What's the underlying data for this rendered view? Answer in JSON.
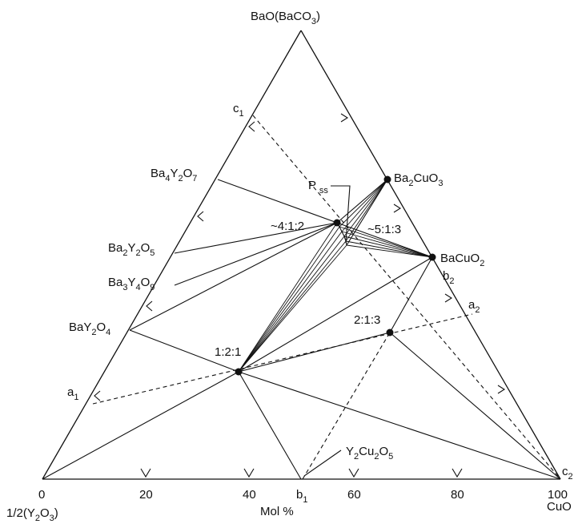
{
  "vertices": {
    "top": "BaO(BaCO3)",
    "left": "1/2(Y2O3)",
    "right": "CuO"
  },
  "axis": {
    "ticks": [
      "0",
      "20",
      "40",
      "60",
      "80",
      "100"
    ],
    "label": "Mol %"
  },
  "phases": {
    "ba4y2o7": "Ba4Y2O7",
    "ba2y2o5": "Ba2Y2O5",
    "ba3y4o9": "Ba3Y4O9",
    "bay2o4": "BaY2O4",
    "ba2cuo3": "Ba2CuO3",
    "bacuo2": "BaCuO2",
    "y2cu2o5": "Y2Cu2O5",
    "p411": "~4:1:2",
    "p513": "~5:1:3",
    "p213": "2:1:3",
    "p121": "1:2:1",
    "pss": "P ss"
  },
  "points": {
    "a1": "a1",
    "a2": "a2",
    "b1": "b1",
    "b2": "b2",
    "c1": "c1",
    "c2": "c2"
  }
}
